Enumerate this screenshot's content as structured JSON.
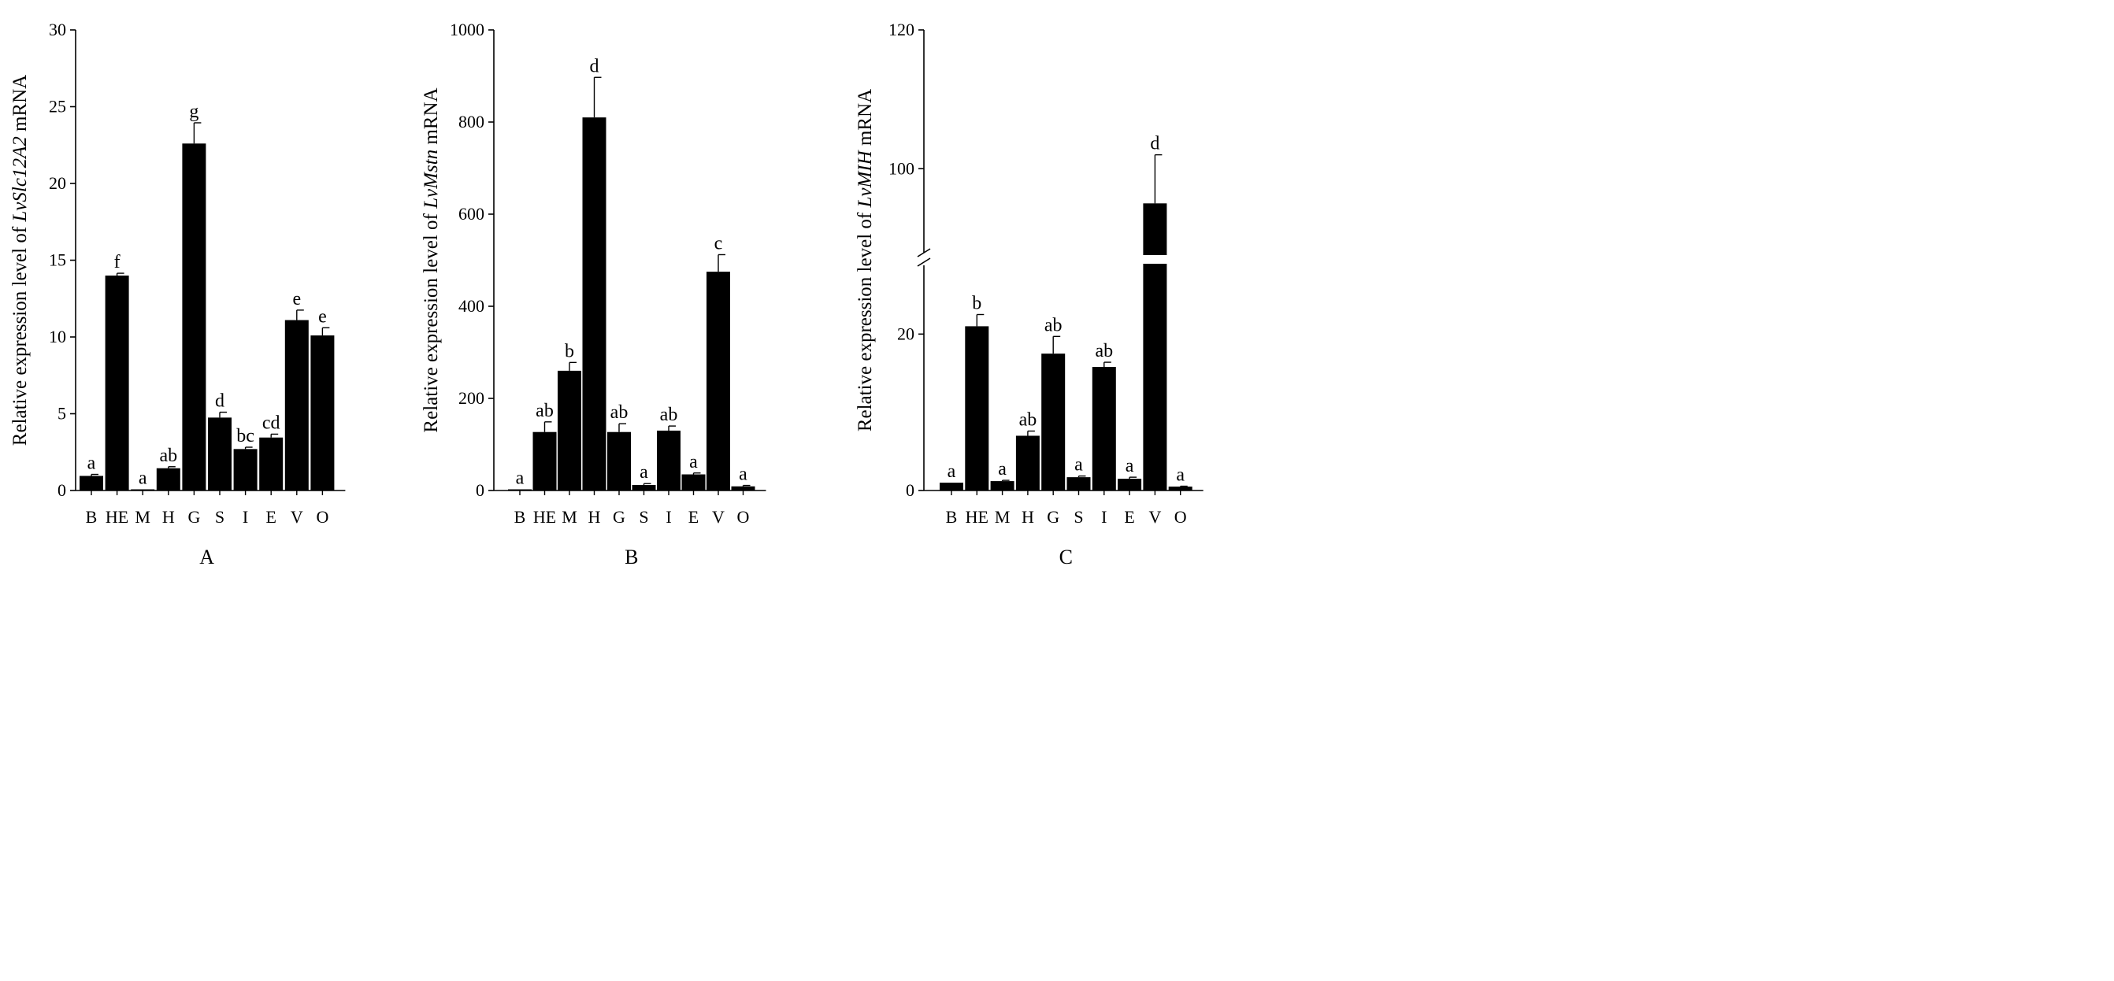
{
  "chart_data": [
    {
      "type": "bar",
      "panel_label": "A",
      "ylabel_prefix": "Relative expression level of ",
      "gene": "LvSlc12A2",
      "ylabel_suffix": " mRNA",
      "categories": [
        "B",
        "HE",
        "M",
        "H",
        "G",
        "S",
        "I",
        "E",
        "V",
        "O"
      ],
      "values": [
        0.95,
        14.0,
        0.02,
        1.45,
        22.6,
        4.75,
        2.7,
        3.45,
        11.1,
        10.1
      ],
      "errors": [
        0.1,
        0.15,
        0.0,
        0.1,
        1.35,
        0.35,
        0.12,
        0.22,
        0.65,
        0.5
      ],
      "significance": [
        "a",
        "f",
        "a",
        "ab",
        "g",
        "d",
        "bc",
        "cd",
        "e",
        "e"
      ],
      "yticks": [
        "0",
        "5",
        "10",
        "15",
        "20",
        "25",
        "30"
      ],
      "ylim": [
        0,
        30
      ]
    },
    {
      "type": "bar",
      "panel_label": "B",
      "ylabel_prefix": "Relative expression level of ",
      "gene": "LvMstn",
      "ylabel_suffix": " mRNA",
      "categories": [
        "B",
        "HE",
        "M",
        "H",
        "G",
        "S",
        "I",
        "E",
        "V",
        "O"
      ],
      "values": [
        1,
        127,
        260,
        810,
        127,
        12,
        130,
        35,
        475,
        9
      ],
      "errors": [
        0,
        22,
        18,
        87,
        18,
        3,
        10,
        3,
        37,
        2
      ],
      "significance": [
        "a",
        "ab",
        "b",
        "d",
        "ab",
        "a",
        "ab",
        "a",
        "c",
        "a"
      ],
      "yticks": [
        "0",
        "200",
        "400",
        "600",
        "800",
        "1000"
      ],
      "ylim": [
        0,
        1000
      ]
    },
    {
      "type": "bar",
      "panel_label": "C",
      "ylabel_prefix": "Relative expression level of ",
      "gene": "LvMIH",
      "ylabel_suffix": " mRNA",
      "categories": [
        "B",
        "HE",
        "M",
        "H",
        "G",
        "S",
        "I",
        "E",
        "V",
        "O"
      ],
      "values": [
        1,
        21,
        1.2,
        7,
        17.5,
        1.7,
        15.8,
        1.5,
        95,
        0.5
      ],
      "errors": [
        0,
        1.5,
        0.1,
        0.6,
        2.2,
        0.15,
        0.6,
        0.2,
        7,
        0.05
      ],
      "significance": [
        "a",
        "b",
        "a",
        "ab",
        "ab",
        "a",
        "ab",
        "a",
        "d",
        "a"
      ],
      "yticks": [
        "0",
        "20",
        "100",
        "120"
      ],
      "axis_break": {
        "lower_range": [
          0,
          30
        ],
        "upper_range": [
          88,
          120
        ]
      }
    }
  ]
}
